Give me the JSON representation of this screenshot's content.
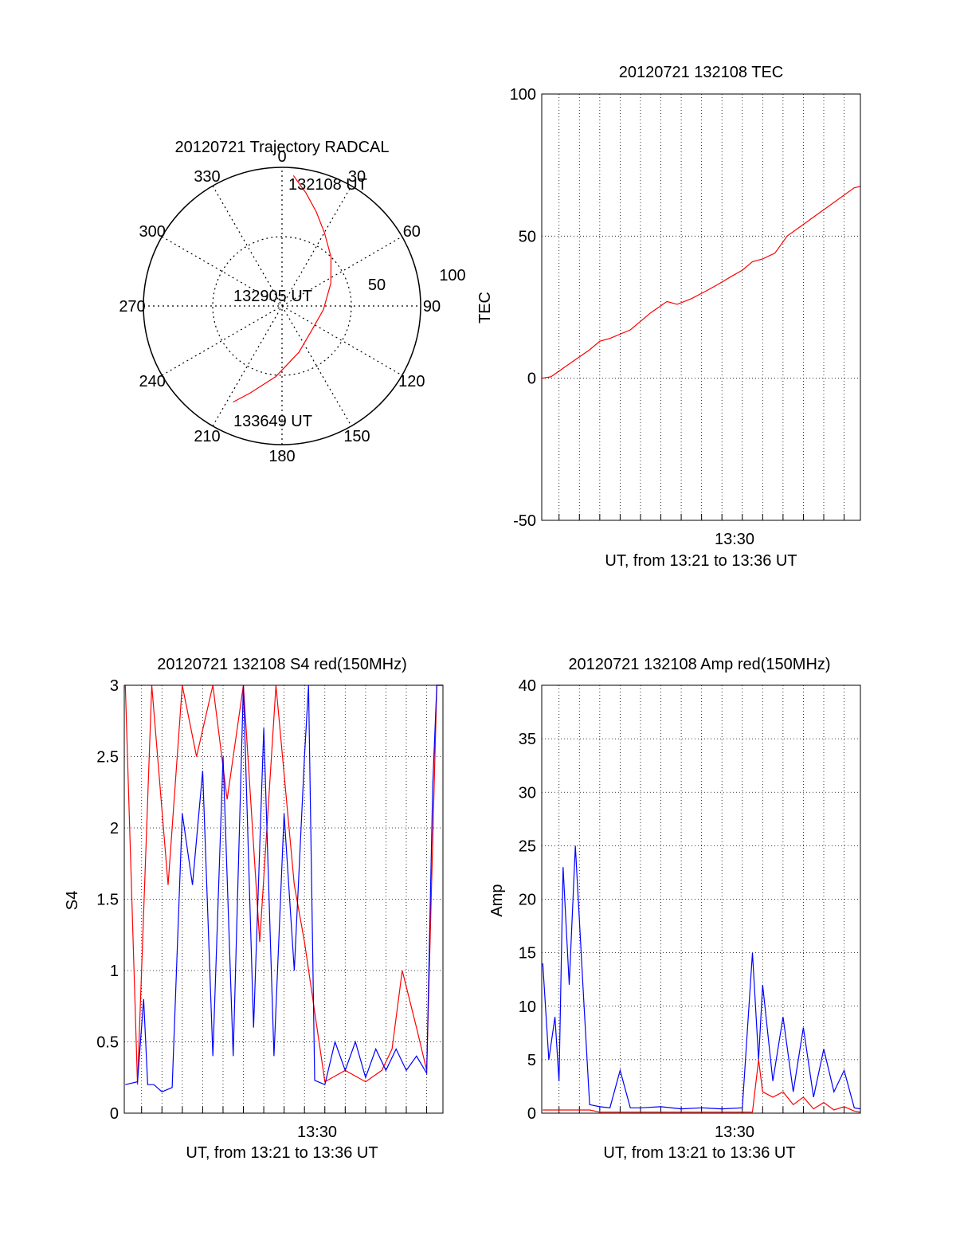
{
  "chart_data": [
    {
      "type": "polar-trajectory",
      "title": "20120721 Trajectory RADCAL",
      "azimuth_labels": [
        "0",
        "30",
        "60",
        "90",
        "120",
        "150",
        "180",
        "210",
        "240",
        "270",
        "300",
        "330"
      ],
      "radial_labels": [
        "50",
        "100"
      ],
      "color": "#ff0000",
      "annotations": [
        {
          "text": "132108 UT",
          "az": 5,
          "el": 5
        },
        {
          "text": "132905 UT",
          "az": 280,
          "el": 80
        },
        {
          "text": "133649 UT",
          "az": 207,
          "el": 20
        }
      ],
      "series": [
        {
          "az": [
            5,
            12,
            20,
            30,
            45,
            65,
            95,
            130,
            160,
            185,
            200,
            207
          ],
          "el": [
            5,
            15,
            25,
            35,
            45,
            55,
            63,
            65,
            58,
            44,
            30,
            20
          ]
        }
      ]
    },
    {
      "type": "line",
      "title": "20120721 132108 TEC",
      "xlabel": "UT, from 13:21 to 13:36 UT",
      "ylabel": "TEC",
      "x_tick_labels": [
        {
          "value": 30,
          "label": "13:30"
        }
      ],
      "xlim": [
        21.15,
        36.8
      ],
      "ylim": [
        -50,
        100
      ],
      "yticks": [
        -50,
        0,
        50,
        100
      ],
      "grid": true,
      "series": [
        {
          "color": "#ff0000",
          "x": [
            21.15,
            21.6,
            22.5,
            23.5,
            24.0,
            24.5,
            25.5,
            26.5,
            27.3,
            27.8,
            28.5,
            29.3,
            29.8,
            30.5,
            31.0,
            31.5,
            32.0,
            32.6,
            33.2,
            36.5,
            36.8
          ],
          "y": [
            0,
            0.5,
            5,
            10,
            13,
            14,
            17,
            23,
            27,
            26,
            28,
            31,
            33,
            36,
            38,
            41,
            42,
            44,
            50,
            67,
            67.5
          ]
        }
      ]
    },
    {
      "type": "line",
      "title": "20120721 132108 S4 red(150MHz)",
      "xlabel": "UT, from 13:21 to 13:36 UT",
      "ylabel": "S4",
      "x_tick_labels": [
        {
          "value": 30,
          "label": "13:30"
        }
      ],
      "xlim": [
        21.15,
        36.8
      ],
      "ylim": [
        0,
        3
      ],
      "yticks": [
        0,
        0.5,
        1,
        1.5,
        2,
        2.5,
        3
      ],
      "y_tick_labels": [
        "0",
        "0.5",
        "1",
        "1.5",
        "2",
        "2.5",
        "3"
      ],
      "grid": true,
      "series": [
        {
          "color": "#ff0000",
          "x": [
            21.2,
            21.8,
            22.5,
            23.3,
            24.0,
            24.7,
            25.5,
            26.2,
            27.0,
            27.8,
            28.6,
            29.5,
            30.0,
            31.0,
            32.0,
            33.0,
            33.8,
            34.3,
            34.8,
            35.5,
            36.0,
            36.5,
            36.8
          ],
          "y": [
            3,
            0.2,
            3,
            1.6,
            3,
            2.5,
            3,
            2.2,
            3,
            1.2,
            3,
            1.6,
            1.2,
            0.22,
            0.3,
            0.22,
            0.3,
            0.45,
            1.0,
            0.6,
            0.3,
            3,
            3
          ]
        },
        {
          "color": "#0000ff",
          "x": [
            21.2,
            21.8,
            22.1,
            22.3,
            22.6,
            23.0,
            23.5,
            24.0,
            24.5,
            25.0,
            25.5,
            26.0,
            26.5,
            27.0,
            27.5,
            28.0,
            28.5,
            29.0,
            29.5,
            30.0,
            30.2,
            30.5,
            31.0,
            31.5,
            32.0,
            32.5,
            33.0,
            33.5,
            34.0,
            34.5,
            35.0,
            35.5,
            36.0,
            36.3,
            36.5,
            36.8
          ],
          "y": [
            0.2,
            0.22,
            0.8,
            0.2,
            0.2,
            0.15,
            0.18,
            2.1,
            1.6,
            2.4,
            0.4,
            2.5,
            0.4,
            3,
            0.6,
            2.7,
            0.4,
            2.1,
            1.0,
            2.5,
            3,
            0.23,
            0.2,
            0.5,
            0.3,
            0.5,
            0.25,
            0.45,
            0.3,
            0.45,
            0.3,
            0.4,
            0.28,
            2.3,
            3,
            3
          ]
        }
      ]
    },
    {
      "type": "line",
      "title": "20120721 132108 Amp red(150MHz)",
      "xlabel": "UT, from 13:21 to 13:36 UT",
      "ylabel": "Amp",
      "x_tick_labels": [
        {
          "value": 30,
          "label": "13:30"
        }
      ],
      "xlim": [
        21.15,
        36.8
      ],
      "ylim": [
        0,
        40
      ],
      "yticks": [
        0,
        5,
        10,
        15,
        20,
        25,
        30,
        35,
        40
      ],
      "grid": true,
      "series": [
        {
          "color": "#0000ff",
          "x": [
            21.2,
            21.5,
            21.8,
            22.0,
            22.2,
            22.5,
            22.8,
            23.2,
            23.5,
            24.0,
            24.5,
            25.0,
            25.5,
            26.0,
            27.0,
            28.0,
            29.0,
            30.0,
            31.0,
            31.5,
            31.8,
            32.0,
            32.5,
            33.0,
            33.5,
            34.0,
            34.5,
            35.0,
            35.5,
            36.0,
            36.5,
            36.8
          ],
          "y": [
            14,
            5,
            9,
            3,
            23,
            12,
            25,
            11,
            0.8,
            0.6,
            0.5,
            4,
            0.5,
            0.5,
            0.6,
            0.4,
            0.5,
            0.4,
            0.5,
            15,
            5,
            12,
            3,
            9,
            2,
            8,
            1.5,
            6,
            2,
            4,
            0.5,
            0.4
          ]
        },
        {
          "color": "#ff0000",
          "x": [
            21.2,
            23.5,
            24.0,
            26.0,
            28.0,
            30.0,
            31.5,
            31.8,
            32.0,
            32.5,
            33.0,
            33.5,
            34.0,
            34.5,
            35.0,
            35.5,
            36.0,
            36.5,
            36.8
          ],
          "y": [
            0.3,
            0.3,
            0.1,
            0.1,
            0.1,
            0.1,
            0.1,
            5,
            2,
            1.5,
            2,
            0.8,
            1.5,
            0.4,
            1.0,
            0.3,
            0.6,
            0.2,
            0.1
          ]
        }
      ]
    }
  ]
}
